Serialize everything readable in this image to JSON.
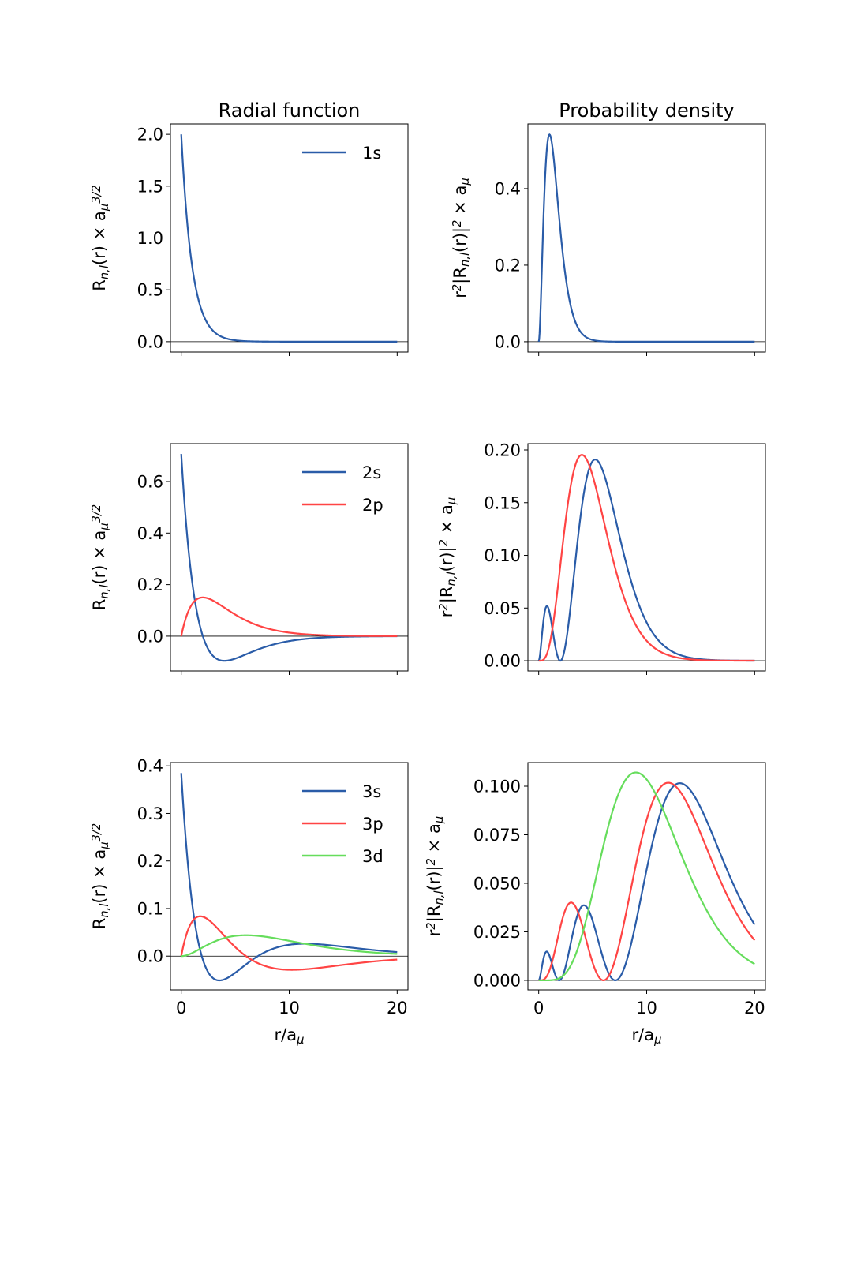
{
  "colors": {
    "blue": "#2a5ca8",
    "red": "#ff4444",
    "green": "#66dd5c"
  },
  "chart_data": [
    {
      "type": "line",
      "panel": "radial-1",
      "title": "Radial function",
      "ylabel": "R_{n,l}(r) × a_μ^{3/2}",
      "xlabel": "",
      "xlim": [
        -1,
        21
      ],
      "ylim": [
        -0.1,
        2.1
      ],
      "xticks": [
        0,
        10,
        20
      ],
      "xticklabels": [],
      "yticks": [
        0,
        0.5,
        1.0,
        1.5,
        2.0
      ],
      "yticklabels": [
        "0.0",
        "0.5",
        "1.0",
        "1.5",
        "2.0"
      ],
      "legend": "top-right",
      "zero_line": true,
      "series": [
        {
          "name": "1s",
          "color": "blue",
          "quantity": "R",
          "norm": 2,
          "poly": [
            1
          ],
          "decay": 1
        }
      ]
    },
    {
      "type": "line",
      "panel": "density-1",
      "title": "Probability density",
      "ylabel": "r^{2}|R_{n,l}(r)|^{2} × a_μ",
      "xlabel": "",
      "xlim": [
        -1,
        21
      ],
      "ylim": [
        -0.027,
        0.569
      ],
      "xticks": [
        0,
        10,
        20
      ],
      "xticklabels": [],
      "yticks": [
        0,
        0.2,
        0.4
      ],
      "yticklabels": [
        "0.0",
        "0.2",
        "0.4"
      ],
      "zero_line": true,
      "series": [
        {
          "color": "blue",
          "quantity": "r2R2",
          "norm": 2,
          "poly": [
            1
          ],
          "decay": 1
        }
      ]
    },
    {
      "type": "line",
      "panel": "radial-2",
      "title": "",
      "ylabel": "R_{n,l}(r) × a_μ^{3/2}",
      "xlabel": "",
      "xlim": [
        -1,
        21
      ],
      "ylim": [
        -0.135,
        0.747
      ],
      "xticks": [
        0,
        10,
        20
      ],
      "xticklabels": [],
      "yticks": [
        0,
        0.2,
        0.4,
        0.6
      ],
      "yticklabels": [
        "0.0",
        "0.2",
        "0.4",
        "0.6"
      ],
      "legend": "top-right",
      "zero_line": true,
      "series": [
        {
          "name": "2s",
          "color": "blue",
          "quantity": "R",
          "norm": 0.35355,
          "poly": [
            2,
            -1
          ],
          "decay": 0.5
        },
        {
          "name": "2p",
          "color": "red",
          "quantity": "R",
          "norm": 0.20412,
          "poly": [
            0,
            1
          ],
          "decay": 0.5
        }
      ]
    },
    {
      "type": "line",
      "panel": "density-2",
      "title": "",
      "ylabel": "r^{2}|R_{n,l}(r)|^{2} × a_μ",
      "xlabel": "",
      "xlim": [
        -1,
        21
      ],
      "ylim": [
        -0.0097,
        0.206
      ],
      "xticks": [
        0,
        10,
        20
      ],
      "xticklabels": [],
      "yticks": [
        0,
        0.05,
        0.1,
        0.15,
        0.2
      ],
      "yticklabels": [
        "0.00",
        "0.05",
        "0.10",
        "0.15",
        "0.20"
      ],
      "zero_line": true,
      "series": [
        {
          "color": "blue",
          "quantity": "r2R2",
          "norm": 0.35355,
          "poly": [
            2,
            -1
          ],
          "decay": 0.5
        },
        {
          "color": "red",
          "quantity": "r2R2",
          "norm": 0.20412,
          "poly": [
            0,
            1
          ],
          "decay": 0.5
        }
      ]
    },
    {
      "type": "line",
      "panel": "radial-3",
      "title": "",
      "ylabel": "R_{n,l}(r) × a_μ^{3/2}",
      "xlabel": "r/a_μ",
      "xlim": [
        -1,
        21
      ],
      "ylim": [
        -0.071,
        0.407
      ],
      "xticks": [
        0,
        10,
        20
      ],
      "xticklabels": [
        "0",
        "10",
        "20"
      ],
      "yticks": [
        0,
        0.1,
        0.2,
        0.3,
        0.4
      ],
      "yticklabels": [
        "0.0",
        "0.1",
        "0.2",
        "0.3",
        "0.4"
      ],
      "legend": "top-right",
      "zero_line": true,
      "series": [
        {
          "name": "3s",
          "color": "blue",
          "quantity": "R",
          "norm": 0.014256,
          "poly": [
            27,
            -18,
            2
          ],
          "decay": 0.33333
        },
        {
          "name": "3p",
          "color": "red",
          "quantity": "R",
          "norm": 0.020161,
          "poly": [
            0,
            6,
            -1
          ],
          "decay": 0.33333
        },
        {
          "name": "3d",
          "color": "green",
          "quantity": "R",
          "norm": 0.0090166,
          "poly": [
            0,
            0,
            1
          ],
          "decay": 0.33333
        }
      ]
    },
    {
      "type": "line",
      "panel": "density-3",
      "title": "",
      "ylabel": "r^{2}|R_{n,l}(r)|^{2} × a_μ",
      "xlabel": "r/a_μ",
      "xlim": [
        -1,
        21
      ],
      "ylim": [
        -0.0049,
        0.1122
      ],
      "xticks": [
        0,
        10,
        20
      ],
      "xticklabels": [
        "0",
        "10",
        "20"
      ],
      "yticks": [
        0,
        0.025,
        0.05,
        0.075,
        0.1
      ],
      "yticklabels": [
        "0.000",
        "0.025",
        "0.050",
        "0.075",
        "0.100"
      ],
      "zero_line": true,
      "series": [
        {
          "color": "blue",
          "quantity": "r2R2",
          "norm": 0.014256,
          "poly": [
            27,
            -18,
            2
          ],
          "decay": 0.33333
        },
        {
          "color": "red",
          "quantity": "r2R2",
          "norm": 0.020161,
          "poly": [
            0,
            6,
            -1
          ],
          "decay": 0.33333
        },
        {
          "color": "green",
          "quantity": "r2R2",
          "norm": 0.0090166,
          "poly": [
            0,
            0,
            1
          ],
          "decay": 0.33333
        }
      ]
    }
  ]
}
